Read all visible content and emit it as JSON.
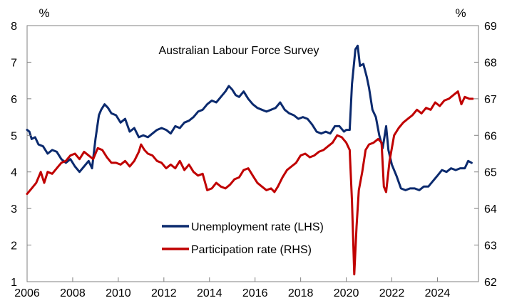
{
  "chart_data": {
    "type": "line",
    "title": "Australian Labour Force Survey",
    "left_axis": {
      "unit": "%",
      "ylim": [
        1,
        8
      ],
      "ticks": [
        1,
        2,
        3,
        4,
        5,
        6,
        7,
        8
      ]
    },
    "right_axis": {
      "unit": "%",
      "ylim": [
        62,
        69
      ],
      "ticks": [
        62,
        63,
        64,
        65,
        66,
        67,
        68,
        69
      ]
    },
    "x_axis": {
      "xlim": [
        2006,
        2025.8
      ],
      "ticks": [
        2006,
        2008,
        2010,
        2012,
        2014,
        2016,
        2018,
        2020,
        2022,
        2024
      ]
    },
    "grid": false,
    "legend_position": "bottom-center",
    "series": [
      {
        "name": "Unemployment rate (LHS)",
        "axis": "left",
        "color": "#0b2a6e",
        "points": [
          [
            2006.0,
            5.15
          ],
          [
            2006.1,
            5.1
          ],
          [
            2006.2,
            4.9
          ],
          [
            2006.35,
            4.95
          ],
          [
            2006.5,
            4.75
          ],
          [
            2006.7,
            4.7
          ],
          [
            2006.9,
            4.5
          ],
          [
            2007.1,
            4.6
          ],
          [
            2007.3,
            4.55
          ],
          [
            2007.5,
            4.35
          ],
          [
            2007.7,
            4.25
          ],
          [
            2007.9,
            4.35
          ],
          [
            2008.1,
            4.15
          ],
          [
            2008.3,
            4.0
          ],
          [
            2008.5,
            4.15
          ],
          [
            2008.7,
            4.3
          ],
          [
            2008.85,
            4.1
          ],
          [
            2009.0,
            4.9
          ],
          [
            2009.15,
            5.55
          ],
          [
            2009.25,
            5.7
          ],
          [
            2009.4,
            5.85
          ],
          [
            2009.55,
            5.75
          ],
          [
            2009.7,
            5.6
          ],
          [
            2009.9,
            5.55
          ],
          [
            2010.1,
            5.35
          ],
          [
            2010.3,
            5.45
          ],
          [
            2010.5,
            5.1
          ],
          [
            2010.7,
            5.2
          ],
          [
            2010.9,
            4.95
          ],
          [
            2011.1,
            5.0
          ],
          [
            2011.3,
            4.95
          ],
          [
            2011.5,
            5.05
          ],
          [
            2011.7,
            5.15
          ],
          [
            2011.9,
            5.2
          ],
          [
            2012.1,
            5.15
          ],
          [
            2012.3,
            5.05
          ],
          [
            2012.5,
            5.25
          ],
          [
            2012.7,
            5.2
          ],
          [
            2012.9,
            5.35
          ],
          [
            2013.1,
            5.4
          ],
          [
            2013.3,
            5.5
          ],
          [
            2013.5,
            5.65
          ],
          [
            2013.7,
            5.7
          ],
          [
            2013.9,
            5.85
          ],
          [
            2014.1,
            5.95
          ],
          [
            2014.3,
            5.9
          ],
          [
            2014.5,
            6.05
          ],
          [
            2014.7,
            6.2
          ],
          [
            2014.85,
            6.35
          ],
          [
            2015.0,
            6.25
          ],
          [
            2015.15,
            6.1
          ],
          [
            2015.3,
            6.05
          ],
          [
            2015.5,
            6.2
          ],
          [
            2015.7,
            6.0
          ],
          [
            2015.9,
            5.85
          ],
          [
            2016.1,
            5.75
          ],
          [
            2016.3,
            5.7
          ],
          [
            2016.5,
            5.65
          ],
          [
            2016.7,
            5.7
          ],
          [
            2016.9,
            5.75
          ],
          [
            2017.1,
            5.9
          ],
          [
            2017.3,
            5.7
          ],
          [
            2017.5,
            5.6
          ],
          [
            2017.7,
            5.55
          ],
          [
            2017.9,
            5.45
          ],
          [
            2018.1,
            5.5
          ],
          [
            2018.3,
            5.45
          ],
          [
            2018.5,
            5.3
          ],
          [
            2018.7,
            5.1
          ],
          [
            2018.9,
            5.05
          ],
          [
            2019.1,
            5.1
          ],
          [
            2019.3,
            5.05
          ],
          [
            2019.5,
            5.25
          ],
          [
            2019.7,
            5.25
          ],
          [
            2019.9,
            5.1
          ],
          [
            2020.0,
            5.15
          ],
          [
            2020.15,
            5.15
          ],
          [
            2020.25,
            6.4
          ],
          [
            2020.4,
            7.35
          ],
          [
            2020.5,
            7.45
          ],
          [
            2020.6,
            6.9
          ],
          [
            2020.75,
            6.95
          ],
          [
            2020.9,
            6.6
          ],
          [
            2021.0,
            6.3
          ],
          [
            2021.15,
            5.7
          ],
          [
            2021.3,
            5.5
          ],
          [
            2021.45,
            5.0
          ],
          [
            2021.6,
            4.65
          ],
          [
            2021.75,
            5.25
          ],
          [
            2021.85,
            4.6
          ],
          [
            2022.0,
            4.2
          ],
          [
            2022.2,
            3.9
          ],
          [
            2022.4,
            3.55
          ],
          [
            2022.6,
            3.5
          ],
          [
            2022.8,
            3.55
          ],
          [
            2023.0,
            3.55
          ],
          [
            2023.2,
            3.5
          ],
          [
            2023.4,
            3.6
          ],
          [
            2023.6,
            3.6
          ],
          [
            2023.8,
            3.75
          ],
          [
            2024.0,
            3.9
          ],
          [
            2024.2,
            4.05
          ],
          [
            2024.4,
            4.0
          ],
          [
            2024.6,
            4.1
          ],
          [
            2024.8,
            4.05
          ],
          [
            2025.0,
            4.1
          ],
          [
            2025.2,
            4.1
          ],
          [
            2025.35,
            4.3
          ],
          [
            2025.5,
            4.25
          ]
        ]
      },
      {
        "name": "Participation rate (RHS)",
        "axis": "right",
        "color": "#c00000",
        "points": [
          [
            2006.0,
            64.4
          ],
          [
            2006.2,
            64.55
          ],
          [
            2006.4,
            64.7
          ],
          [
            2006.6,
            65.0
          ],
          [
            2006.75,
            64.7
          ],
          [
            2006.9,
            65.0
          ],
          [
            2007.1,
            64.95
          ],
          [
            2007.3,
            65.1
          ],
          [
            2007.5,
            65.25
          ],
          [
            2007.7,
            65.3
          ],
          [
            2007.9,
            65.45
          ],
          [
            2008.1,
            65.5
          ],
          [
            2008.3,
            65.35
          ],
          [
            2008.5,
            65.55
          ],
          [
            2008.7,
            65.45
          ],
          [
            2008.9,
            65.35
          ],
          [
            2009.1,
            65.65
          ],
          [
            2009.3,
            65.6
          ],
          [
            2009.5,
            65.4
          ],
          [
            2009.7,
            65.25
          ],
          [
            2009.9,
            65.25
          ],
          [
            2010.1,
            65.2
          ],
          [
            2010.3,
            65.3
          ],
          [
            2010.5,
            65.15
          ],
          [
            2010.7,
            65.3
          ],
          [
            2010.9,
            65.55
          ],
          [
            2011.0,
            65.75
          ],
          [
            2011.15,
            65.6
          ],
          [
            2011.3,
            65.5
          ],
          [
            2011.5,
            65.45
          ],
          [
            2011.7,
            65.3
          ],
          [
            2011.9,
            65.25
          ],
          [
            2012.1,
            65.1
          ],
          [
            2012.3,
            65.2
          ],
          [
            2012.5,
            65.1
          ],
          [
            2012.7,
            65.3
          ],
          [
            2012.9,
            65.05
          ],
          [
            2013.1,
            65.2
          ],
          [
            2013.3,
            65.0
          ],
          [
            2013.5,
            64.9
          ],
          [
            2013.7,
            64.95
          ],
          [
            2013.9,
            64.5
          ],
          [
            2014.1,
            64.55
          ],
          [
            2014.3,
            64.7
          ],
          [
            2014.5,
            64.6
          ],
          [
            2014.7,
            64.55
          ],
          [
            2014.9,
            64.65
          ],
          [
            2015.1,
            64.8
          ],
          [
            2015.3,
            64.85
          ],
          [
            2015.5,
            65.05
          ],
          [
            2015.7,
            65.1
          ],
          [
            2015.9,
            64.9
          ],
          [
            2016.1,
            64.7
          ],
          [
            2016.3,
            64.6
          ],
          [
            2016.5,
            64.5
          ],
          [
            2016.7,
            64.55
          ],
          [
            2016.85,
            64.45
          ],
          [
            2017.0,
            64.6
          ],
          [
            2017.2,
            64.85
          ],
          [
            2017.4,
            65.05
          ],
          [
            2017.6,
            65.15
          ],
          [
            2017.8,
            65.25
          ],
          [
            2018.0,
            65.45
          ],
          [
            2018.2,
            65.5
          ],
          [
            2018.4,
            65.4
          ],
          [
            2018.6,
            65.45
          ],
          [
            2018.8,
            65.55
          ],
          [
            2019.0,
            65.6
          ],
          [
            2019.2,
            65.7
          ],
          [
            2019.4,
            65.8
          ],
          [
            2019.6,
            66.0
          ],
          [
            2019.8,
            65.95
          ],
          [
            2020.0,
            65.8
          ],
          [
            2020.15,
            65.6
          ],
          [
            2020.25,
            64.2
          ],
          [
            2020.35,
            62.2
          ],
          [
            2020.45,
            63.5
          ],
          [
            2020.55,
            64.5
          ],
          [
            2020.7,
            65.0
          ],
          [
            2020.85,
            65.6
          ],
          [
            2021.0,
            65.75
          ],
          [
            2021.2,
            65.8
          ],
          [
            2021.4,
            65.9
          ],
          [
            2021.55,
            65.8
          ],
          [
            2021.65,
            64.6
          ],
          [
            2021.75,
            64.45
          ],
          [
            2021.9,
            65.3
          ],
          [
            2022.1,
            66.0
          ],
          [
            2022.3,
            66.2
          ],
          [
            2022.5,
            66.35
          ],
          [
            2022.7,
            66.45
          ],
          [
            2022.9,
            66.55
          ],
          [
            2023.1,
            66.7
          ],
          [
            2023.3,
            66.6
          ],
          [
            2023.5,
            66.75
          ],
          [
            2023.7,
            66.7
          ],
          [
            2023.9,
            66.9
          ],
          [
            2024.1,
            66.8
          ],
          [
            2024.3,
            66.95
          ],
          [
            2024.5,
            67.0
          ],
          [
            2024.7,
            67.1
          ],
          [
            2024.9,
            67.2
          ],
          [
            2025.05,
            66.85
          ],
          [
            2025.2,
            67.05
          ],
          [
            2025.4,
            67.0
          ],
          [
            2025.55,
            67.0
          ]
        ]
      }
    ]
  }
}
